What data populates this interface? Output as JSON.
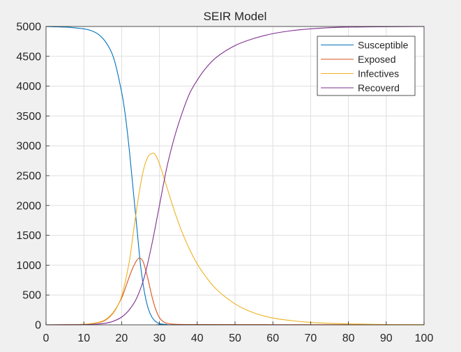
{
  "chart_data": {
    "type": "line",
    "title": "SEIR Model",
    "xlabel": "",
    "ylabel": "",
    "xlim": [
      0,
      100
    ],
    "ylim": [
      0,
      5000
    ],
    "x_ticks": [
      0,
      10,
      20,
      30,
      40,
      50,
      60,
      70,
      80,
      90,
      100
    ],
    "y_ticks": [
      0,
      500,
      1000,
      1500,
      2000,
      2500,
      3000,
      3500,
      4000,
      4500,
      5000
    ],
    "grid": true,
    "legend_position": "top-right",
    "series": [
      {
        "name": "Susceptible",
        "color": "#0072bd",
        "points": [
          [
            0,
            5000
          ],
          [
            5,
            4990
          ],
          [
            8,
            4975
          ],
          [
            10,
            4960
          ],
          [
            12,
            4930
          ],
          [
            14,
            4860
          ],
          [
            16,
            4720
          ],
          [
            18,
            4450
          ],
          [
            20,
            3900
          ],
          [
            21,
            3500
          ],
          [
            22,
            2950
          ],
          [
            23,
            2300
          ],
          [
            24,
            1650
          ],
          [
            25,
            1000
          ],
          [
            26,
            560
          ],
          [
            27,
            280
          ],
          [
            28,
            130
          ],
          [
            29,
            55
          ],
          [
            30,
            20
          ],
          [
            32,
            5
          ],
          [
            35,
            0
          ],
          [
            100,
            0
          ]
        ]
      },
      {
        "name": "Exposed",
        "color": "#d95319",
        "points": [
          [
            0,
            0
          ],
          [
            10,
            8
          ],
          [
            14,
            40
          ],
          [
            16,
            90
          ],
          [
            18,
            220
          ],
          [
            20,
            450
          ],
          [
            21,
            620
          ],
          [
            22,
            800
          ],
          [
            23,
            960
          ],
          [
            24,
            1080
          ],
          [
            24.7,
            1120
          ],
          [
            25.5,
            1080
          ],
          [
            26,
            1000
          ],
          [
            27,
            760
          ],
          [
            28,
            480
          ],
          [
            29,
            260
          ],
          [
            30,
            120
          ],
          [
            31,
            55
          ],
          [
            32,
            25
          ],
          [
            34,
            10
          ],
          [
            40,
            5
          ],
          [
            60,
            3
          ],
          [
            80,
            2
          ],
          [
            100,
            1
          ]
        ]
      },
      {
        "name": "Infectives",
        "color": "#edb120",
        "points": [
          [
            0,
            0
          ],
          [
            10,
            10
          ],
          [
            14,
            45
          ],
          [
            16,
            100
          ],
          [
            18,
            230
          ],
          [
            20,
            480
          ],
          [
            22,
            1050
          ],
          [
            23,
            1500
          ],
          [
            24,
            1950
          ],
          [
            25,
            2350
          ],
          [
            26,
            2650
          ],
          [
            27,
            2820
          ],
          [
            28,
            2870
          ],
          [
            28.8,
            2860
          ],
          [
            30,
            2700
          ],
          [
            32,
            2300
          ],
          [
            34,
            1900
          ],
          [
            36,
            1550
          ],
          [
            38,
            1260
          ],
          [
            40,
            1020
          ],
          [
            42,
            830
          ],
          [
            45,
            600
          ],
          [
            50,
            350
          ],
          [
            55,
            200
          ],
          [
            60,
            115
          ],
          [
            65,
            70
          ],
          [
            70,
            40
          ],
          [
            75,
            25
          ],
          [
            80,
            15
          ],
          [
            90,
            6
          ],
          [
            100,
            2
          ]
        ]
      },
      {
        "name": "Recoverd",
        "color": "#7e2f8e",
        "points": [
          [
            0,
            0
          ],
          [
            10,
            3
          ],
          [
            14,
            15
          ],
          [
            16,
            30
          ],
          [
            18,
            65
          ],
          [
            20,
            130
          ],
          [
            22,
            250
          ],
          [
            24,
            450
          ],
          [
            26,
            800
          ],
          [
            28,
            1350
          ],
          [
            30,
            2000
          ],
          [
            32,
            2650
          ],
          [
            34,
            3150
          ],
          [
            36,
            3550
          ],
          [
            38,
            3880
          ],
          [
            40,
            4100
          ],
          [
            42,
            4280
          ],
          [
            45,
            4480
          ],
          [
            50,
            4680
          ],
          [
            55,
            4800
          ],
          [
            60,
            4880
          ],
          [
            65,
            4930
          ],
          [
            70,
            4960
          ],
          [
            75,
            4980
          ],
          [
            80,
            4990
          ],
          [
            90,
            4996
          ],
          [
            100,
            5000
          ]
        ]
      }
    ]
  }
}
